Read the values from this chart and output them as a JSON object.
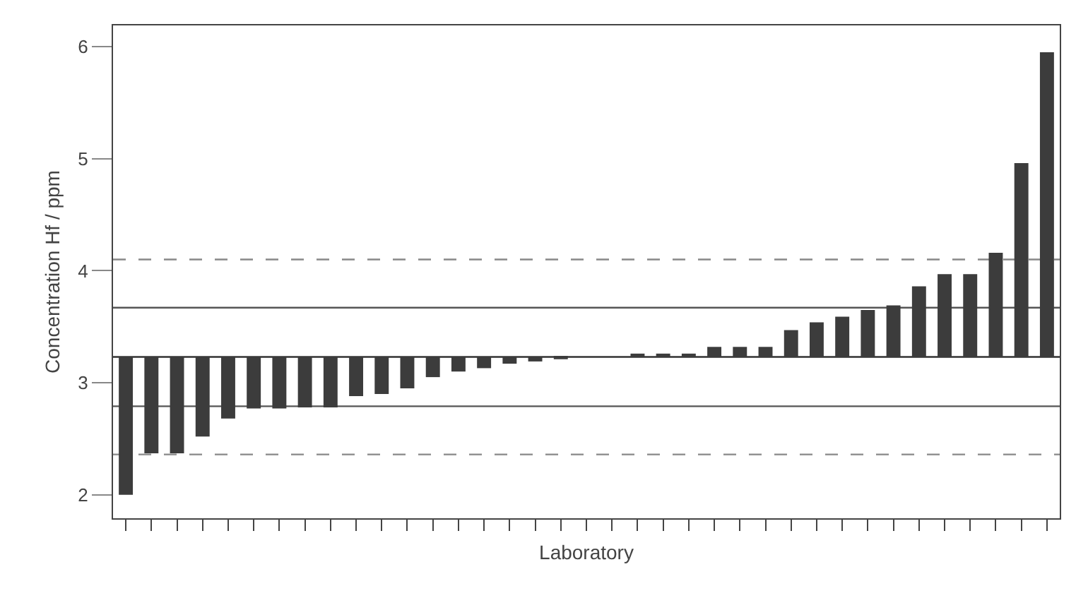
{
  "chart_data": {
    "type": "bar",
    "xlabel": "Laboratory",
    "ylabel": "Concentration Hf / ppm",
    "categories": [
      null,
      null,
      null,
      null,
      null,
      null,
      null,
      null,
      null,
      null,
      null,
      null,
      null,
      null,
      null,
      null,
      null,
      null,
      null,
      null,
      null,
      null,
      null,
      null,
      null,
      null,
      null,
      null,
      null,
      null,
      null,
      null,
      null,
      null,
      null,
      null,
      null
    ],
    "base": [
      3.23,
      3.23,
      3.23,
      3.23,
      3.23,
      3.23,
      3.23,
      3.23,
      3.23,
      3.23,
      3.23,
      3.23,
      3.23,
      3.23,
      3.23,
      3.23,
      3.23,
      3.23,
      null,
      null,
      3.23,
      3.23,
      3.23,
      3.23,
      3.23,
      3.23,
      3.23,
      3.23,
      3.23,
      3.23,
      3.23,
      3.23,
      3.23,
      3.23,
      3.23,
      3.23,
      3.23
    ],
    "values": [
      -1.23,
      -0.86,
      -0.86,
      -0.71,
      -0.55,
      -0.46,
      -0.46,
      -0.45,
      -0.45,
      -0.35,
      -0.33,
      -0.28,
      -0.18,
      -0.13,
      -0.1,
      -0.06,
      -0.04,
      -0.02,
      null,
      null,
      0.03,
      0.03,
      0.03,
      0.09,
      0.09,
      0.09,
      0.24,
      0.31,
      0.36,
      0.42,
      0.46,
      0.63,
      0.74,
      0.74,
      0.93,
      1.73,
      2.72
    ],
    "color": "#3c3c3c",
    "ylim": [
      1.79,
      6.19
    ],
    "yticks": [
      2,
      3,
      4,
      5,
      6
    ],
    "grid": false,
    "ref_lines": [
      {
        "axis": "y",
        "value": 3.23,
        "line_style": "solid",
        "color": "#333333"
      },
      {
        "axis": "y",
        "value": 3.67,
        "line_style": "solid",
        "color": "#555555"
      },
      {
        "axis": "y",
        "value": 2.79,
        "line_style": "solid",
        "color": "#555555"
      },
      {
        "axis": "y",
        "value": 4.1,
        "line_style": "dashed",
        "color": "#888888"
      },
      {
        "axis": "y",
        "value": 2.36,
        "line_style": "dashed",
        "color": "#888888"
      }
    ]
  }
}
